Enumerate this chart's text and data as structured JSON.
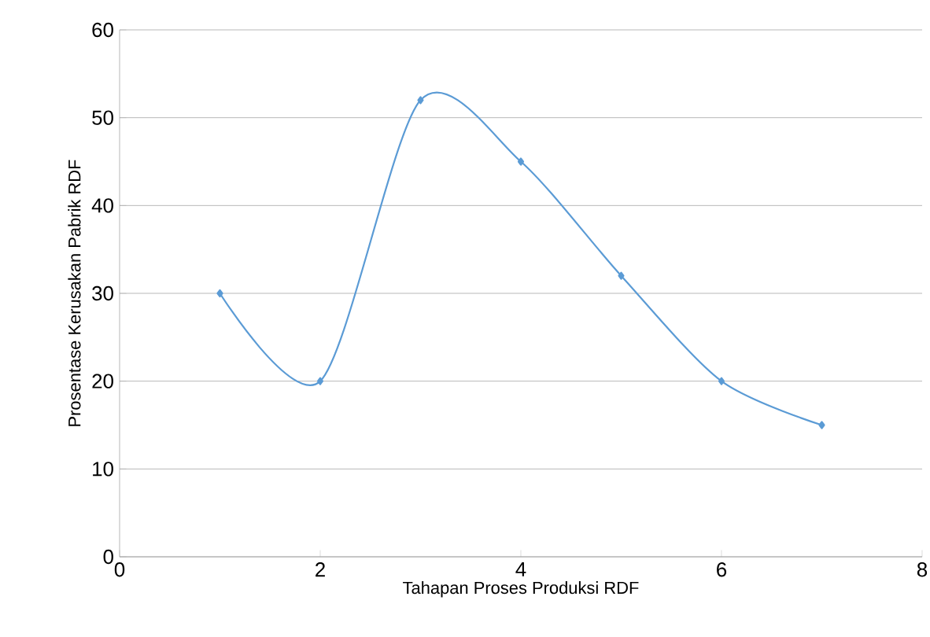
{
  "chart_data": {
    "type": "line",
    "xlabel": "Tahapan Proses Produksi RDF",
    "ylabel": "Prosentase Kerusakan Pabrik RDF",
    "x": [
      1,
      2,
      3,
      4,
      5,
      6,
      7
    ],
    "values": [
      30,
      20,
      52,
      45,
      32,
      20,
      15
    ],
    "color": "#5b9bd5",
    "marker": "diamond",
    "line_style": "solid",
    "grid": "y",
    "xlim": [
      0,
      8
    ],
    "xticks": [
      0,
      2,
      4,
      6,
      8
    ],
    "ylim": [
      0,
      60
    ],
    "yticks": [
      0,
      10,
      20,
      30,
      40,
      50,
      60
    ]
  }
}
